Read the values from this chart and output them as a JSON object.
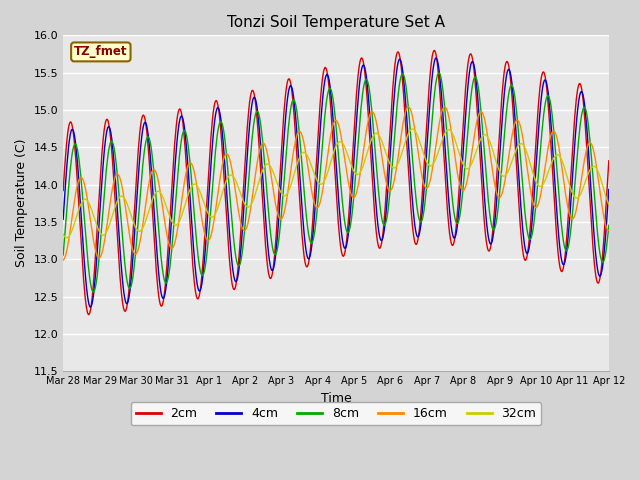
{
  "title": "Tonzi Soil Temperature Set A",
  "xlabel": "Time",
  "ylabel": "Soil Temperature (C)",
  "ylim": [
    11.5,
    16.0
  ],
  "yticks": [
    11.5,
    12.0,
    12.5,
    13.0,
    13.5,
    14.0,
    14.5,
    15.0,
    15.5,
    16.0
  ],
  "bg_color": "#e8e8e8",
  "fig_bg_color": "#d4d4d4",
  "line_colors": {
    "2cm": "#dd0000",
    "4cm": "#0000cc",
    "8cm": "#00aa00",
    "16cm": "#ff8800",
    "32cm": "#cccc00"
  },
  "line_labels": [
    "2cm",
    "4cm",
    "8cm",
    "16cm",
    "32cm"
  ],
  "xtick_labels": [
    "Mar 28",
    "Mar 29",
    "Mar 30",
    "Mar 31",
    "Apr 1",
    "Apr 2",
    "Apr 3",
    "Apr 4",
    "Apr 5",
    "Apr 6",
    "Apr 7",
    "Apr 8",
    "Apr 9",
    "Apr 10",
    "Apr 11",
    "Apr 12"
  ],
  "n_days": 15,
  "figsize": [
    6.4,
    4.8
  ],
  "dpi": 100
}
